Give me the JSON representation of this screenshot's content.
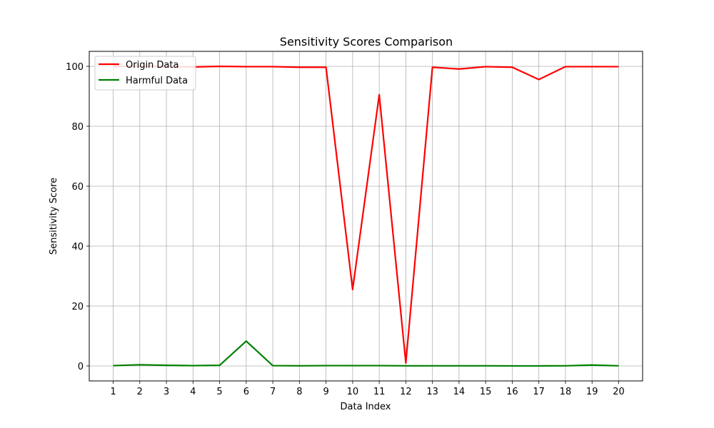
{
  "chart_data": {
    "type": "line",
    "title": "Sensitivity Scores Comparison",
    "xlabel": "Data Index",
    "ylabel": "Sensitivity Score",
    "x": [
      1,
      2,
      3,
      4,
      5,
      6,
      7,
      8,
      9,
      10,
      11,
      12,
      13,
      14,
      15,
      16,
      17,
      18,
      19,
      20
    ],
    "xlim": [
      0.1,
      20.9
    ],
    "ylim": [
      -5,
      105
    ],
    "yticks": [
      0,
      20,
      40,
      60,
      80,
      100
    ],
    "grid": true,
    "legend_position": "top-left",
    "series": [
      {
        "name": "Origin Data",
        "color": "#ff0000",
        "values": [
          100,
          100,
          100,
          99.8,
          100,
          99.9,
          99.9,
          99.7,
          99.7,
          25.5,
          90.5,
          1.0,
          99.7,
          99.1,
          99.9,
          99.7,
          95.6,
          99.9,
          99.9,
          99.9
        ]
      },
      {
        "name": "Harmful Data",
        "color": "#008000",
        "values": [
          0.1,
          0.4,
          0.2,
          0.1,
          0.2,
          8.3,
          0.1,
          0.05,
          0.1,
          0.1,
          0.1,
          0.05,
          0.05,
          0.05,
          0.05,
          0.02,
          0.02,
          0.05,
          0.3,
          0.05
        ]
      }
    ]
  }
}
